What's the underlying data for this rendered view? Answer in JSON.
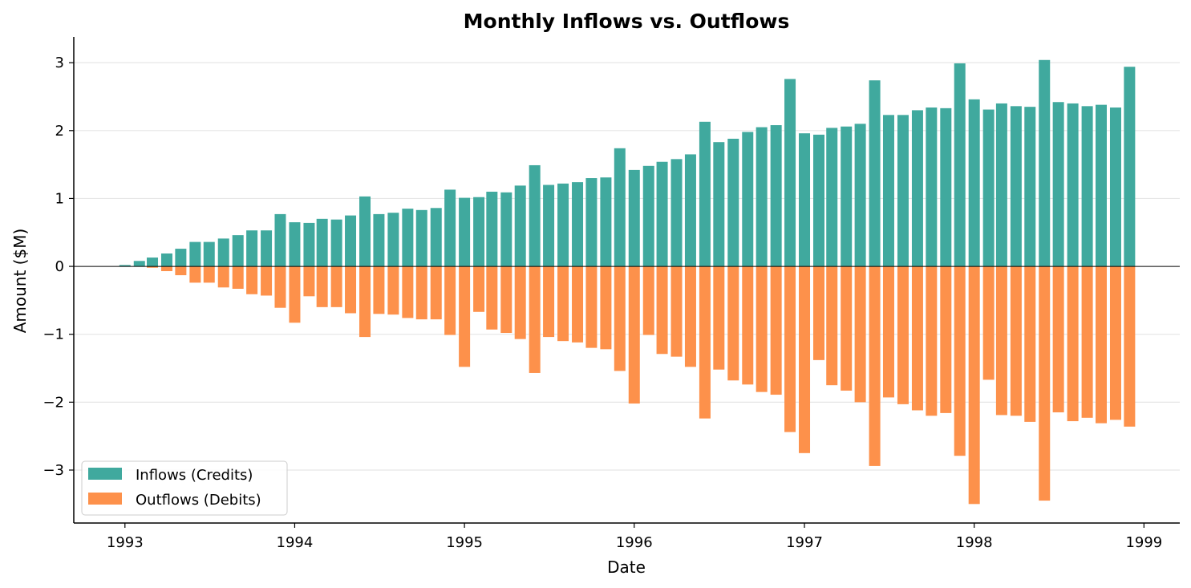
{
  "chart_data": {
    "type": "bar",
    "title": "Monthly Inflows vs. Outflows",
    "xlabel": "Date",
    "ylabel": "Amount ($M)",
    "x_tick_labels": [
      "1993",
      "1994",
      "1995",
      "1996",
      "1997",
      "1998",
      "1999"
    ],
    "y_ticks": [
      -3,
      -2,
      -1,
      0,
      1,
      2,
      3
    ],
    "y_tick_labels": [
      "−3",
      "−2",
      "−1",
      "0",
      "1",
      "2",
      "3"
    ],
    "ylim": [
      -3.78,
      3.38
    ],
    "xlim": [
      "1992-09-13",
      "1999-03-19"
    ],
    "grid": "horizontal",
    "legend_position": "lower-left",
    "colors": {
      "inflows": "#40a99e",
      "outflows": "#fd914b",
      "axis": "#000000",
      "grid": "#e6e6e6"
    },
    "series": [
      {
        "name": "Inflows (Credits)",
        "values": [
          0.02,
          0.08,
          0.13,
          0.19,
          0.26,
          0.36,
          0.36,
          0.41,
          0.46,
          0.53,
          0.53,
          0.77,
          0.65,
          0.64,
          0.7,
          0.69,
          0.75,
          1.03,
          0.77,
          0.79,
          0.85,
          0.83,
          0.86,
          1.13,
          1.01,
          1.02,
          1.1,
          1.09,
          1.19,
          1.49,
          1.2,
          1.22,
          1.24,
          1.3,
          1.31,
          1.74,
          1.42,
          1.48,
          1.54,
          1.58,
          1.65,
          2.13,
          1.83,
          1.88,
          1.98,
          2.05,
          2.08,
          2.76,
          1.96,
          1.94,
          2.04,
          2.06,
          2.1,
          2.74,
          2.23,
          2.23,
          2.3,
          2.34,
          2.33,
          2.99,
          2.46,
          2.31,
          2.4,
          2.36,
          2.35,
          3.04,
          2.42,
          2.4,
          2.36,
          2.38,
          2.34,
          2.94
        ]
      },
      {
        "name": "Outflows (Debits)",
        "values": [
          0.0,
          0.0,
          -0.02,
          -0.07,
          -0.13,
          -0.24,
          -0.24,
          -0.31,
          -0.33,
          -0.41,
          -0.43,
          -0.61,
          -0.83,
          -0.44,
          -0.6,
          -0.6,
          -0.69,
          -1.04,
          -0.7,
          -0.71,
          -0.76,
          -0.78,
          -0.78,
          -1.01,
          -1.48,
          -0.67,
          -0.93,
          -0.98,
          -1.07,
          -1.57,
          -1.04,
          -1.1,
          -1.12,
          -1.2,
          -1.22,
          -1.54,
          -2.02,
          -1.01,
          -1.29,
          -1.33,
          -1.48,
          -2.24,
          -1.52,
          -1.68,
          -1.74,
          -1.85,
          -1.89,
          -2.44,
          -2.75,
          -1.38,
          -1.75,
          -1.83,
          -2.0,
          -2.94,
          -1.93,
          -2.03,
          -2.12,
          -2.2,
          -2.16,
          -2.79,
          -3.5,
          -1.67,
          -2.19,
          -2.2,
          -2.29,
          -3.45,
          -2.15,
          -2.28,
          -2.23,
          -2.31,
          -2.26,
          -2.36
        ]
      }
    ],
    "x_start": "1993-01",
    "x_frequency": "monthly"
  }
}
